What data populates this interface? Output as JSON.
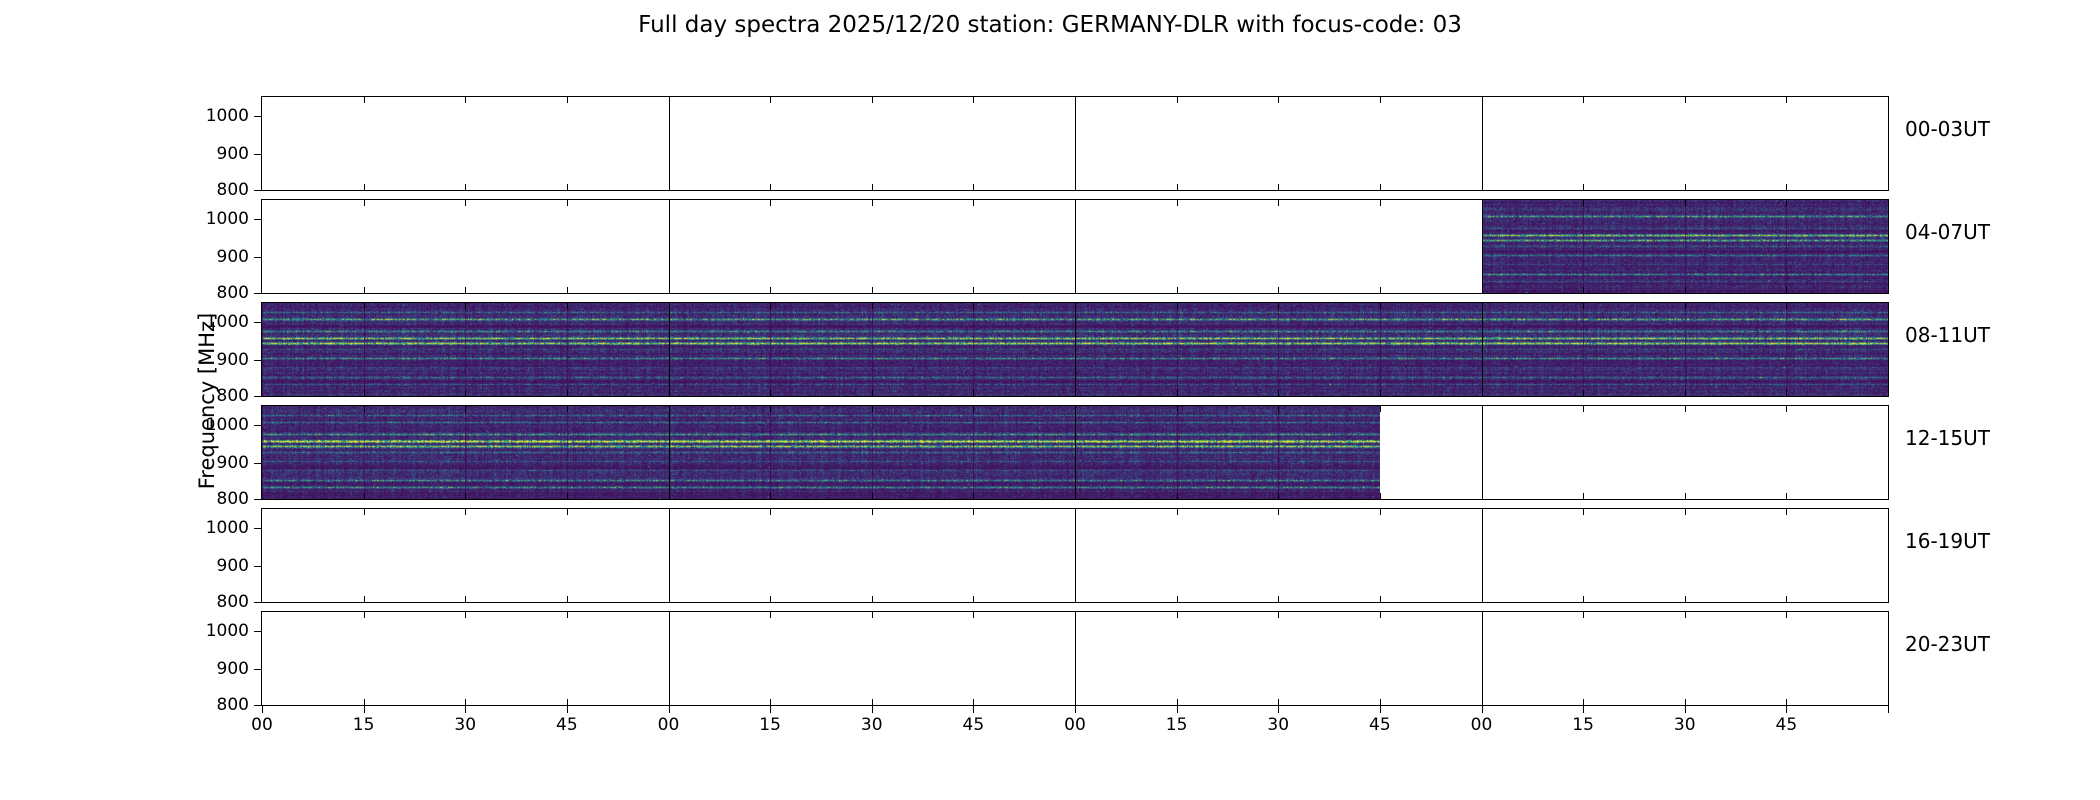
{
  "title": "Full day spectra 2025/12/20 station: GERMANY-DLR with focus-code: 03",
  "ylabel": "Frequency [MHz]",
  "yticks": [
    "1000",
    "900",
    "800"
  ],
  "xticks": [
    "00",
    "15",
    "30",
    "45",
    "00",
    "15",
    "30",
    "45",
    "00",
    "15",
    "30",
    "45",
    "00",
    "15",
    "30",
    "45"
  ],
  "colors": {
    "background": "#ffffff",
    "axis": "#000000",
    "colormap_stops": [
      "#440154",
      "#3b528b",
      "#21918c",
      "#5ec962",
      "#fde725"
    ]
  },
  "chart_data": {
    "type": "heatmap",
    "title": "Full day spectra 2025/12/20 station: GERMANY-DLR with focus-code: 03",
    "xlabel": "",
    "ylabel": "Frequency [MHz]",
    "ylim": [
      800,
      1050
    ],
    "yticks": [
      1000,
      900,
      800
    ],
    "xtick_minutes": [
      "00",
      "15",
      "30",
      "45"
    ],
    "hours_per_row": 4,
    "segments_per_row": 16,
    "segment_duration_minutes": 15,
    "colormap": "viridis",
    "legend": "none",
    "grid": "hour boundaries as vertical lines, 15-min boundaries as edge ticks",
    "rows": [
      {
        "label": "00-03UT",
        "time_range": "00:00-04:00 UT",
        "filled_start": 0,
        "filled_end": 0,
        "coverage": "no data"
      },
      {
        "label": "04-07UT",
        "time_range": "04:00-08:00 UT",
        "filled_start": 12,
        "filled_end": 16,
        "coverage": "spectra from 07:00 to 08:00 UT"
      },
      {
        "label": "08-11UT",
        "time_range": "08:00-12:00 UT",
        "filled_start": 0,
        "filled_end": 16,
        "coverage": "spectra for full 4 hours"
      },
      {
        "label": "12-15UT",
        "time_range": "12:00-16:00 UT",
        "filled_start": 0,
        "filled_end": 11,
        "coverage": "spectra from 12:00 to 14:45 UT"
      },
      {
        "label": "16-19UT",
        "time_range": "16:00-20:00 UT",
        "filled_start": 0,
        "filled_end": 0,
        "coverage": "no data"
      },
      {
        "label": "20-23UT",
        "time_range": "20:00-24:00 UT",
        "filled_start": 0,
        "filled_end": 0,
        "coverage": "no data"
      }
    ]
  }
}
